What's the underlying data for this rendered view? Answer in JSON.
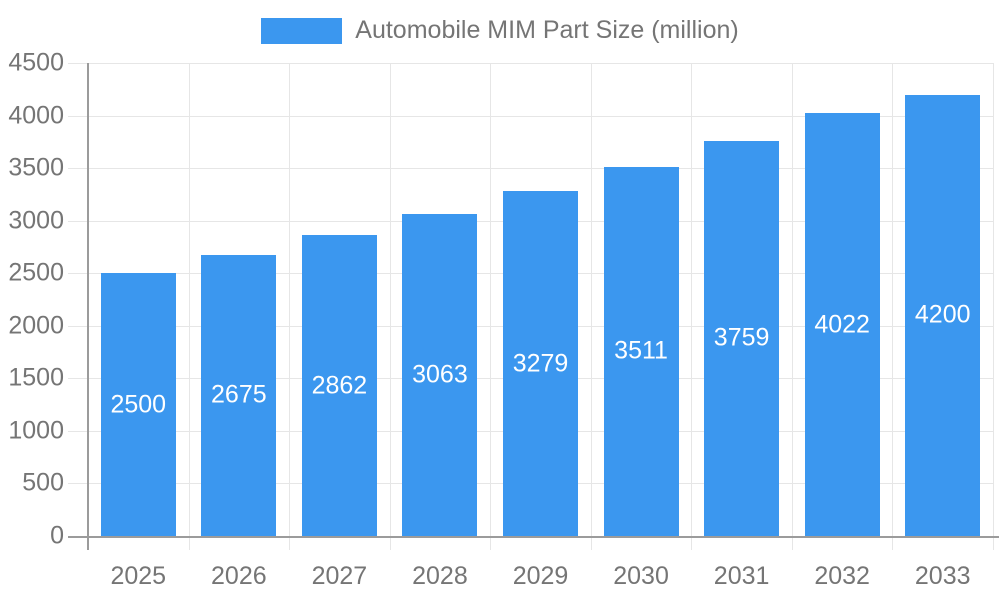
{
  "chart_data": {
    "type": "bar",
    "title": "Automobile MIM Part Size (million)",
    "categories": [
      "2025",
      "2026",
      "2027",
      "2028",
      "2029",
      "2030",
      "2031",
      "2032",
      "2033"
    ],
    "values": [
      2500,
      2675,
      2862,
      3063,
      3279,
      3511,
      3759,
      4022,
      4200
    ],
    "xlabel": "",
    "ylabel": "",
    "ylim": [
      0,
      4500
    ],
    "ytick_step": 500,
    "yticks": [
      "0",
      "500",
      "1000",
      "1500",
      "2000",
      "2500",
      "3000",
      "3500",
      "4000",
      "4500"
    ],
    "grid": "horizontal-and-vertical",
    "legend_position": "top-center",
    "bar_labels_position": "inside-center"
  },
  "colors": {
    "bar": "#3B97EF",
    "bar_label_text": "#FFFFFF",
    "grid_line": "#E6E6E6",
    "axis_line": "#9B9B9B",
    "tick_text": "#757575",
    "legend_text": "#757575",
    "background": "#FFFFFF"
  }
}
